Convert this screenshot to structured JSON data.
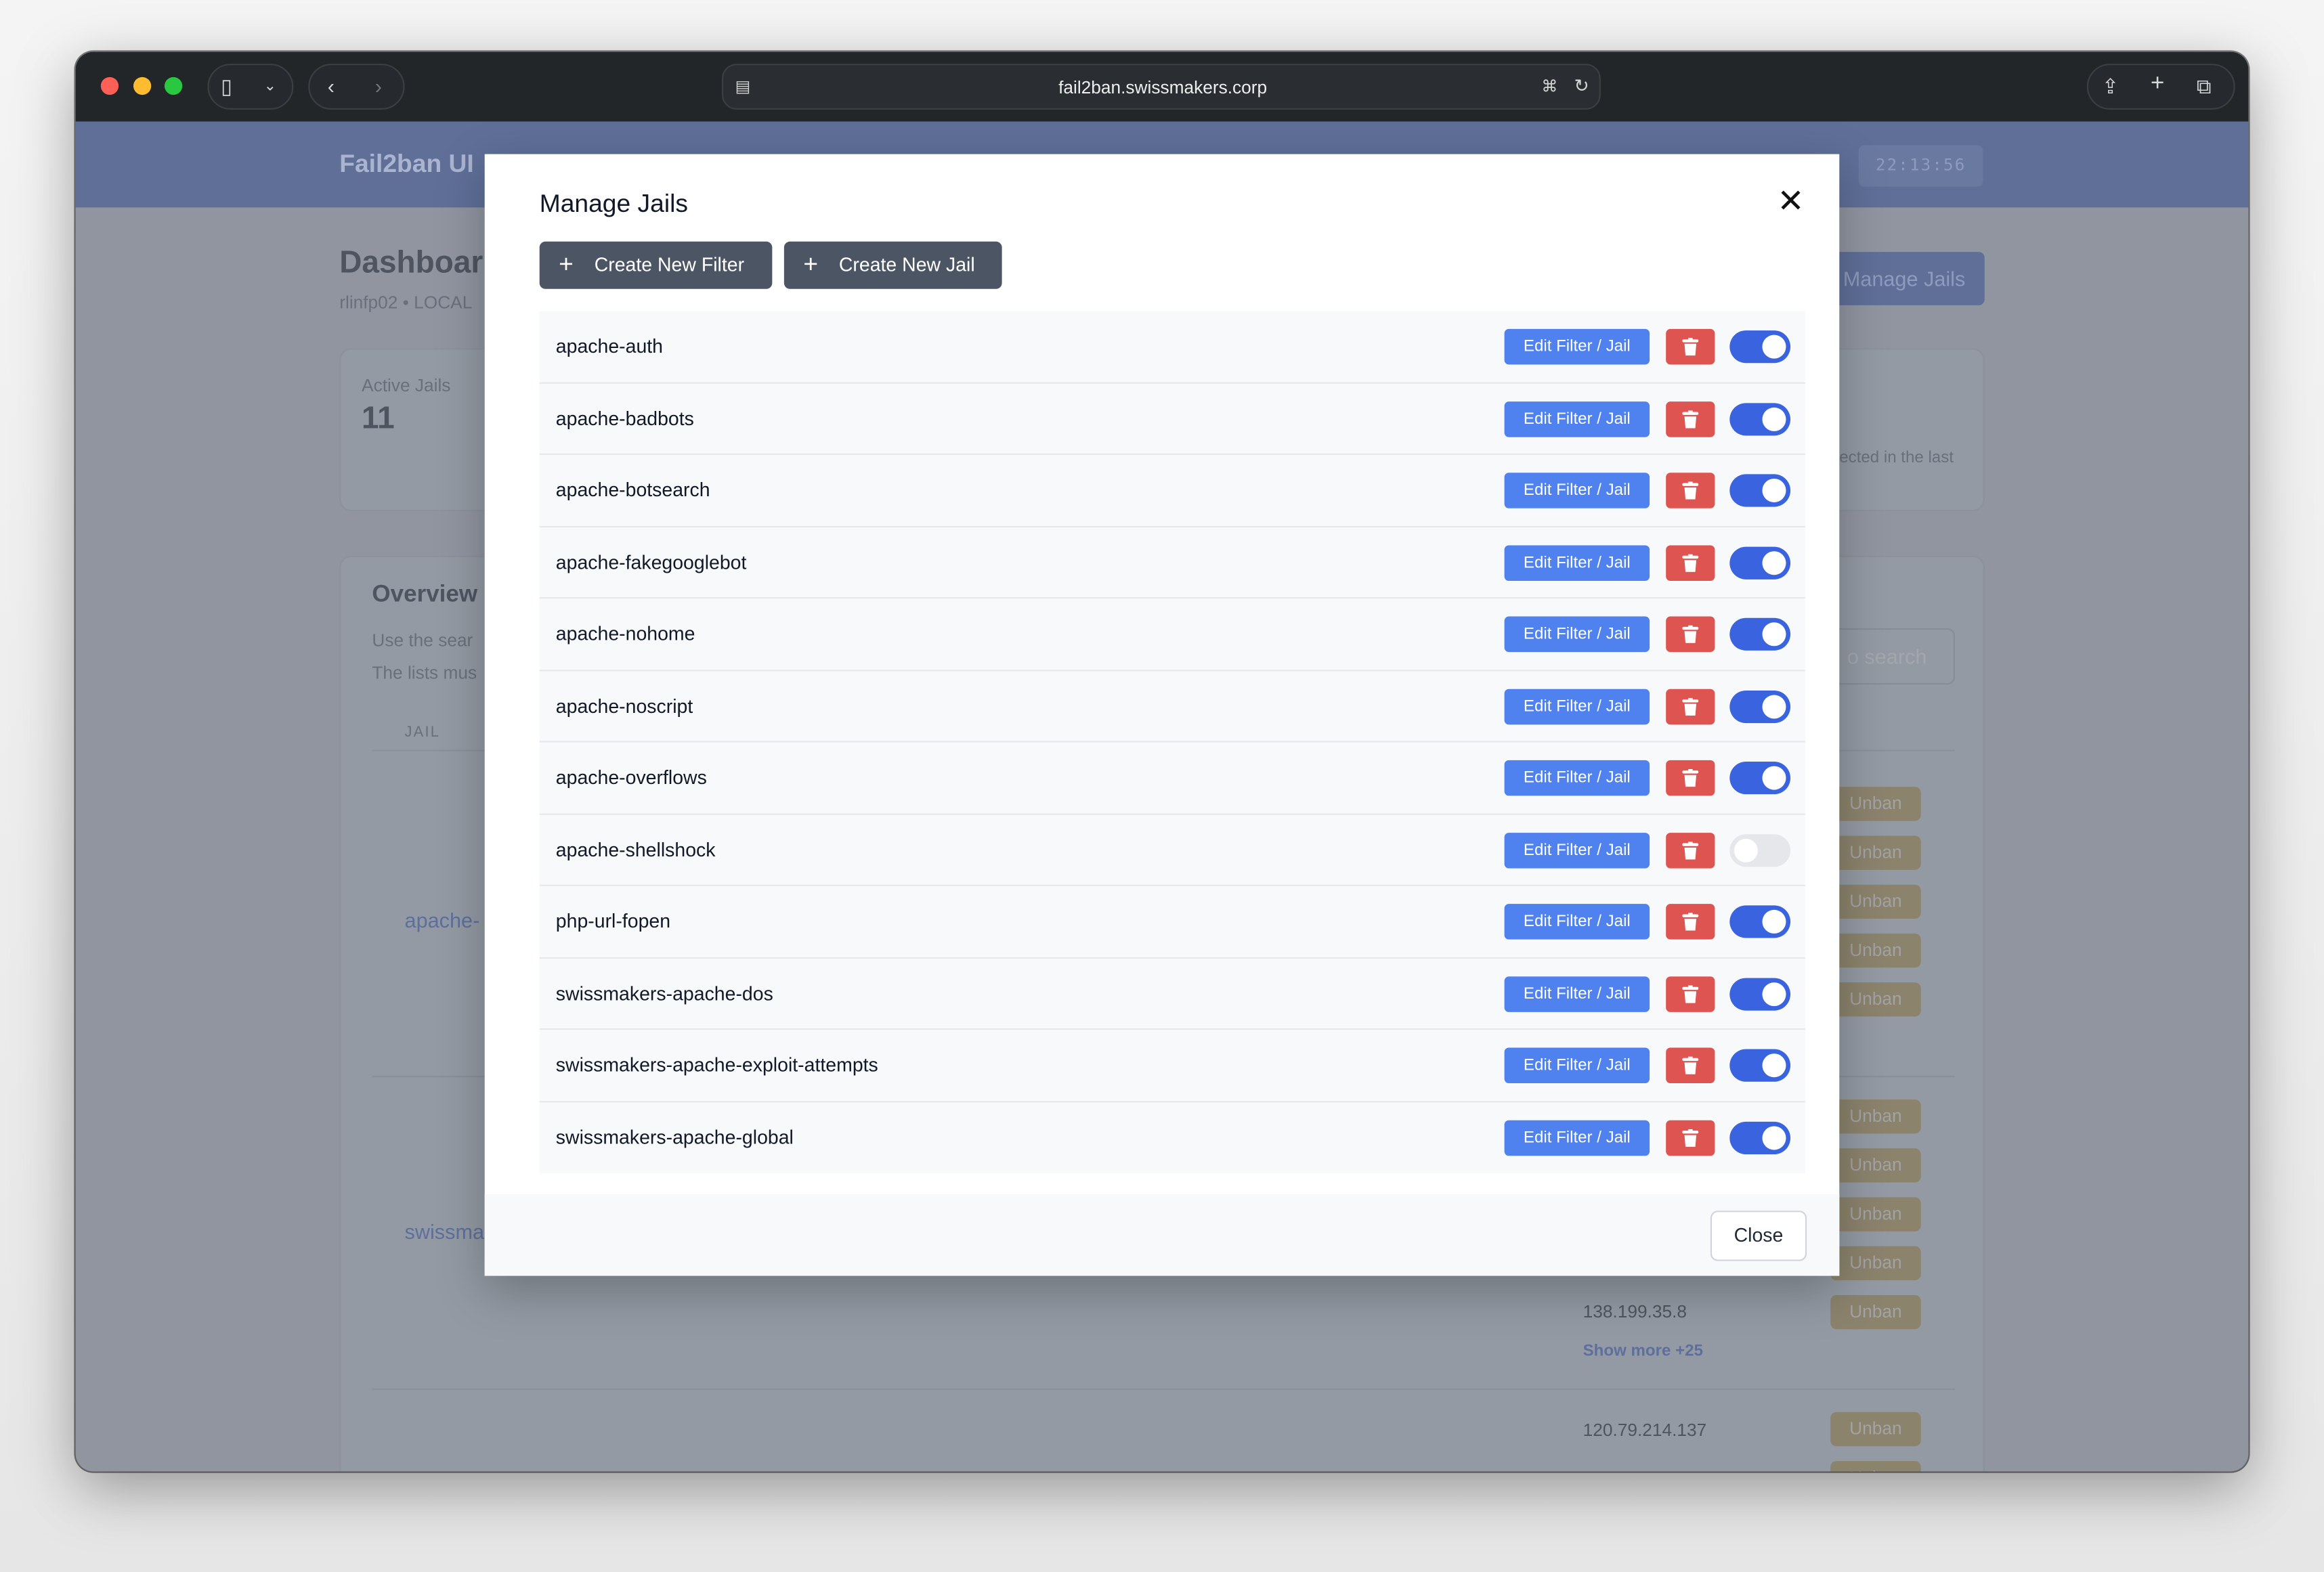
{
  "browser": {
    "url": "fail2ban.swissmakers.corp"
  },
  "app": {
    "brand": "Fail2ban UI",
    "clock": "22:13:56"
  },
  "dashboard": {
    "title": "Dashboar",
    "subtitle": "rlinfp02 • LOCAL",
    "manage_jails_label": "Manage Jails",
    "active_jails_label": "Active Jails",
    "active_jails_value": "11",
    "stat_text_fragment": "ected in the last",
    "overview_title": "Overview a",
    "overview_line1": "Use the sear",
    "overview_line2": "The lists mus",
    "search_placeholder": "o search",
    "col_jail": "JAIL",
    "jail_fragment_1": "apache-",
    "jail_fragment_2": "swissma",
    "unban_label": "Unban",
    "ips": [
      "138.199.35.8",
      "120.79.214.137"
    ],
    "show_more": "Show more +25"
  },
  "modal": {
    "title": "Manage Jails",
    "create_filter": "Create New Filter",
    "create_jail": "Create New Jail",
    "edit_label": "Edit Filter / Jail",
    "close_label": "Close",
    "jails": [
      {
        "name": "apache-auth",
        "enabled": true
      },
      {
        "name": "apache-badbots",
        "enabled": true
      },
      {
        "name": "apache-botsearch",
        "enabled": true
      },
      {
        "name": "apache-fakegooglebot",
        "enabled": true
      },
      {
        "name": "apache-nohome",
        "enabled": true
      },
      {
        "name": "apache-noscript",
        "enabled": true
      },
      {
        "name": "apache-overflows",
        "enabled": true
      },
      {
        "name": "apache-shellshock",
        "enabled": false
      },
      {
        "name": "php-url-fopen",
        "enabled": true
      },
      {
        "name": "swissmakers-apache-dos",
        "enabled": true
      },
      {
        "name": "swissmakers-apache-exploit-attempts",
        "enabled": true
      },
      {
        "name": "swissmakers-apache-global",
        "enabled": true
      }
    ]
  },
  "colors": {
    "edit": "#4f82ee",
    "delete": "#dd5450",
    "toggle_on": "#3a63e0",
    "toggle_off": "#e5e7eb",
    "create_buttons": "#4b5563"
  }
}
